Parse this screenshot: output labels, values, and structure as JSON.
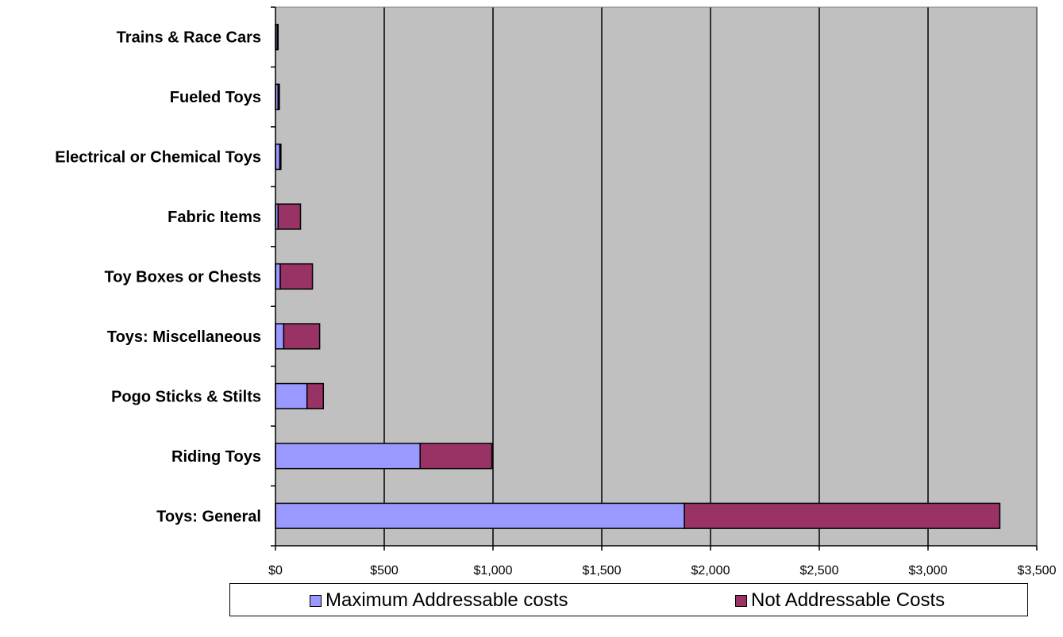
{
  "chart_data": {
    "type": "bar",
    "orientation": "horizontal",
    "stacked": true,
    "categories": [
      "Trains & Race Cars",
      "Fueled Toys",
      "Electrical or Chemical Toys",
      "Fabric Items",
      "Toy Boxes or Chests",
      "Toys: Miscellaneous",
      "Pogo Sticks & Stilts",
      "Riding Toys",
      "Toys: General"
    ],
    "series": [
      {
        "name": "Maximum Addressable costs",
        "color": "#9999ff",
        "values": [
          8,
          12,
          20,
          12,
          22,
          38,
          145,
          665,
          1880
        ]
      },
      {
        "name": "Not Addressable Costs",
        "color": "#993366",
        "values": [
          4,
          6,
          5,
          103,
          148,
          165,
          75,
          330,
          1450
        ]
      }
    ],
    "x_ticks": [
      "$0",
      "$500",
      "$1,000",
      "$1,500",
      "$2,000",
      "$2,500",
      "$3,000",
      "$3,500"
    ],
    "xlim": [
      0,
      3500
    ],
    "plot_background": "#c0c0c0",
    "grid": true,
    "legend_position": "bottom"
  }
}
